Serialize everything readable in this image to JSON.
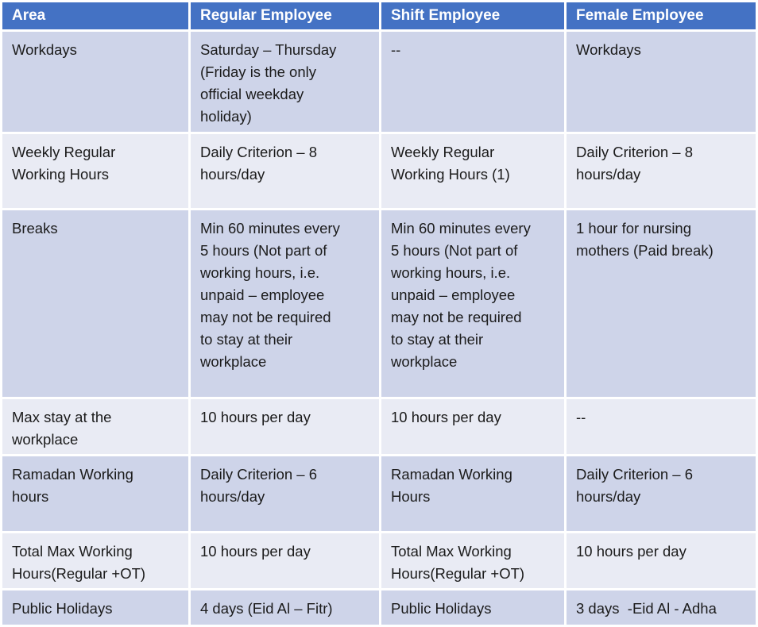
{
  "colors": {
    "header_bg": "#4472C4",
    "header_text": "#FFFFFF",
    "band_dark": "#CED4E9",
    "band_light": "#E9EBF4",
    "body_text": "#1B1B1B"
  },
  "table": {
    "headers": [
      "Area",
      "Regular Employee",
      "Shift Employee",
      "Female Employee"
    ],
    "rows": [
      [
        "Workdays",
        "Saturday – Thursday\n(Friday is the only\nofficial weekday\nholiday)",
        "--",
        "Workdays"
      ],
      [
        "Weekly Regular\nWorking Hours",
        "Daily Criterion – 8\nhours/day",
        "Weekly Regular\nWorking Hours (1)",
        "Daily Criterion – 8\nhours/day"
      ],
      [
        "Breaks",
        "Min 60 minutes every\n5 hours (Not part of\nworking hours, i.e.\nunpaid – employee\nmay not be required\nto stay at their\nworkplace",
        "Min 60 minutes every\n5 hours (Not part of\nworking hours, i.e.\nunpaid – employee\nmay not be required\nto stay at their\nworkplace",
        "1 hour for nursing\nmothers (Paid break)"
      ],
      [
        "Max stay at the\nworkplace",
        "10 hours per day",
        "10 hours per day",
        "--"
      ],
      [
        "Ramadan Working\nhours",
        "Daily Criterion – 6\nhours/day",
        "Ramadan Working\nHours",
        "Daily Criterion – 6\nhours/day"
      ],
      [
        "Total Max Working\nHours(Regular +OT)",
        "10 hours per day",
        "Total Max Working\nHours(Regular +OT)",
        "10 hours per day"
      ],
      [
        "Public Holidays",
        "4 days (Eid Al – Fitr)",
        "Public Holidays",
        "3 days  -Eid Al - Adha"
      ]
    ]
  }
}
